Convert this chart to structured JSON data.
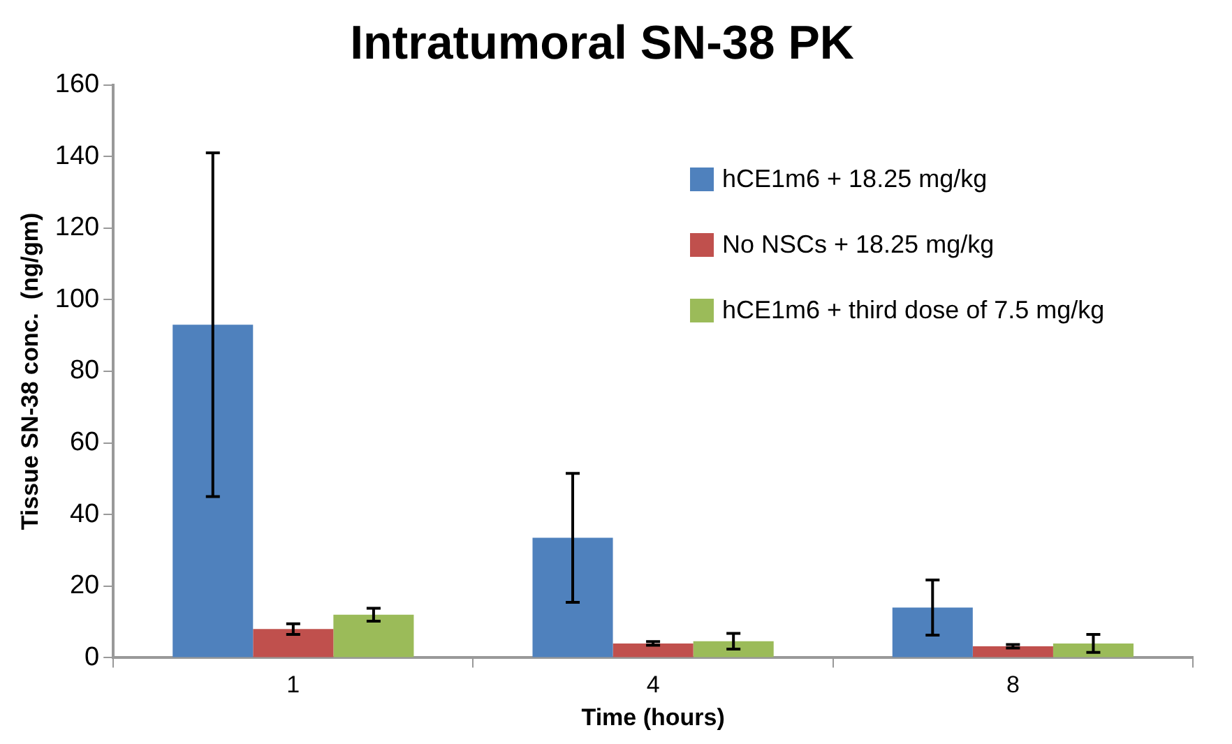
{
  "chart_data": {
    "type": "bar",
    "title": "Intratumoral SN-38 PK",
    "xlabel": "Time (hours)",
    "ylabel": "Tissue SN-38 conc.  (ng/gm)",
    "categories": [
      "1",
      "4",
      "8"
    ],
    "series": [
      {
        "name": "hCE1m6 + 18.25 mg/kg",
        "color": "#4f81bd",
        "values": [
          93,
          33.5,
          14
        ],
        "errors": [
          48,
          18,
          7.7
        ]
      },
      {
        "name": "No NSCs + 18.25 mg/kg",
        "color": "#c0504d",
        "values": [
          8,
          4,
          3.2
        ],
        "errors": [
          1.5,
          0.5,
          0.5
        ]
      },
      {
        "name": "hCE1m6 + third dose of 7.5 mg/kg",
        "color": "#9bbb59",
        "values": [
          12,
          4.6,
          4
        ],
        "errors": [
          1.8,
          2.2,
          2.5
        ]
      }
    ],
    "ylim": [
      0,
      160
    ],
    "yticks": [
      0,
      20,
      40,
      60,
      80,
      100,
      120,
      140,
      160
    ],
    "grid": false,
    "legend": "top right"
  }
}
